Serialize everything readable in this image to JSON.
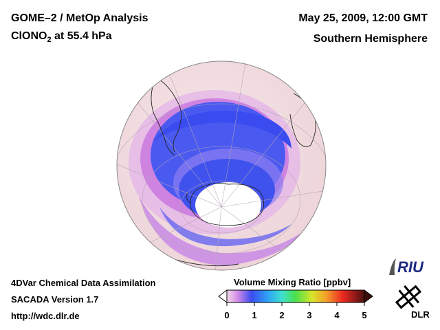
{
  "header": {
    "title_line1": "GOME–2 / MetOp Analysis",
    "species_main": "ClONO",
    "species_sub": "2",
    "species_level": " at 55.4 hPa",
    "datetime": "May 25, 2009, 12:00 GMT",
    "hemisphere": "Southern Hemisphere"
  },
  "footer": {
    "line1": "4DVar Chemical Data Assimilation",
    "line2": "SACADA Version 1.7",
    "line3": "http://wdc.dlr.de"
  },
  "colorbar": {
    "label": "Volume Mixing Ratio [ppbv]",
    "ticks": [
      "0",
      "1",
      "2",
      "3",
      "4",
      "5"
    ],
    "min": 0,
    "max": 5
  },
  "logos": {
    "riu": "RIU",
    "dlr": "DLR"
  },
  "colors": {
    "background_low": "#f3dcdf",
    "band_violet": "#d07ee0",
    "band_blue": "#4a5af0",
    "band_dark_blue": "#3344ee",
    "polar_core": "#ffffff"
  }
}
